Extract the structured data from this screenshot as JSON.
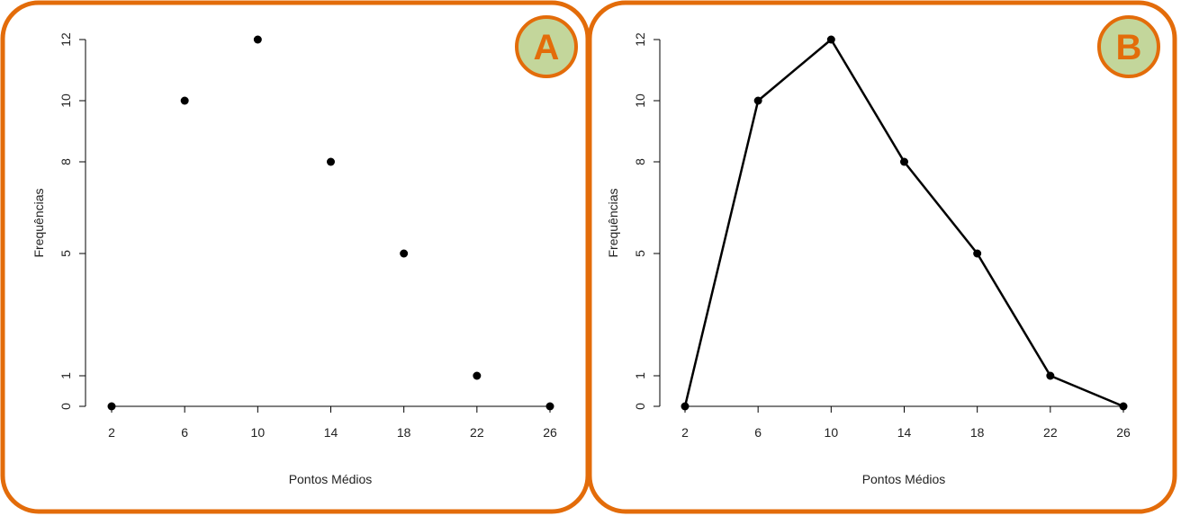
{
  "colors": {
    "frame": "#E36C0A",
    "badge_fill": "#C3D69B",
    "badge_text": "#E36C0A",
    "ink": "#000000"
  },
  "panels": [
    {
      "badge": "A"
    },
    {
      "badge": "B"
    }
  ],
  "chart_data": [
    {
      "type": "scatter",
      "x": [
        2,
        6,
        10,
        14,
        18,
        22,
        26
      ],
      "y": [
        0,
        10,
        12,
        8,
        5,
        1,
        0
      ],
      "xticks": [
        "2",
        "6",
        "10",
        "14",
        "18",
        "22",
        "26"
      ],
      "yticks": [
        "0",
        "1",
        "5",
        "8",
        "10",
        "12"
      ],
      "xlabel": "Pontos Médios",
      "ylabel": "Frequências",
      "xlim": [
        2,
        26
      ],
      "ylim": [
        0,
        12
      ],
      "grid": false
    },
    {
      "type": "line",
      "x": [
        2,
        6,
        10,
        14,
        18,
        22,
        26
      ],
      "y": [
        0,
        10,
        12,
        8,
        5,
        1,
        0
      ],
      "xticks": [
        "2",
        "6",
        "10",
        "14",
        "18",
        "22",
        "26"
      ],
      "yticks": [
        "0",
        "1",
        "5",
        "8",
        "10",
        "12"
      ],
      "xlabel": "Pontos Médios",
      "ylabel": "Frequências",
      "xlim": [
        2,
        26
      ],
      "ylim": [
        0,
        12
      ],
      "grid": false
    }
  ]
}
